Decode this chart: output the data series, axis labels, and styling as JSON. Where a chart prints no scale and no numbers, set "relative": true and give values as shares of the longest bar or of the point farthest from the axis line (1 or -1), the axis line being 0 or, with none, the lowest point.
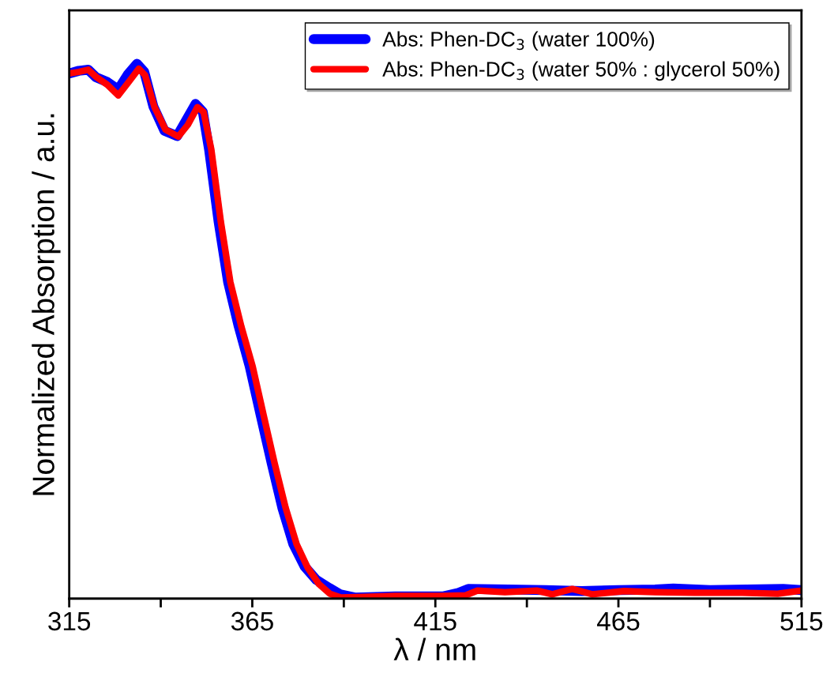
{
  "chart_data": {
    "type": "line",
    "relative": true,
    "xlabel": "λ / nm",
    "ylabel": "Normalized Absorption / a.u.",
    "xlim": [
      315,
      515
    ],
    "xticks": [
      315,
      {
        "value": 340,
        "label": null
      },
      365,
      {
        "value": 390,
        "label": null
      },
      415,
      {
        "value": 440,
        "label": null
      },
      465,
      {
        "value": 490,
        "label": null
      },
      515
    ],
    "legend": "top right",
    "grid": false,
    "marker": "none",
    "line_style": "solid",
    "series": [
      {
        "name": "Abs: Phen-DC$_{3}$ (water 100%)",
        "color": "#0000ff",
        "x": [
          315,
          317.6,
          320.2,
          322.3,
          325.4,
          328.4,
          331,
          333.5,
          335.5,
          338,
          341,
          344.5,
          347,
          349.5,
          351.5,
          353.2,
          355.8,
          358.4,
          361.3,
          364.3,
          367.3,
          370.3,
          373.2,
          376.2,
          379.3,
          382.5,
          386,
          389,
          393,
          404,
          417,
          421,
          424,
          435,
          445,
          455,
          465,
          475,
          480,
          490,
          500,
          510,
          515
        ],
        "values": [
          0.982,
          0.987,
          0.989,
          0.975,
          0.966,
          0.952,
          0.98,
          1.0,
          0.985,
          0.92,
          0.875,
          0.865,
          0.895,
          0.925,
          0.91,
          0.84,
          0.705,
          0.592,
          0.509,
          0.434,
          0.343,
          0.253,
          0.17,
          0.102,
          0.06,
          0.035,
          0.02,
          0.008,
          0.002,
          0.004,
          0.004,
          0.01,
          0.018,
          0.017,
          0.016,
          0.014,
          0.016,
          0.017,
          0.019,
          0.016,
          0.017,
          0.018,
          0.016
        ]
      },
      {
        "name": "Abs: Phen-DC$_{3}$ (water 50% : glycerol 50%)",
        "color": "#ff0000",
        "x": [
          315,
          317.6,
          320.2,
          322.3,
          325.4,
          328.4,
          331,
          334,
          335.7,
          338.3,
          341.3,
          344.8,
          347.4,
          350,
          351.7,
          353.8,
          356.4,
          359,
          362,
          365.1,
          368.1,
          371.1,
          374.1,
          377.1,
          380.2,
          383.2,
          386.2,
          389.2,
          395.3,
          403.9,
          416.8,
          423.3,
          426.5,
          434,
          442.7,
          447,
          452.4,
          457.8,
          466.5,
          475.1,
          485.9,
          498.8,
          508.5,
          515
        ],
        "values": [
          0.982,
          0.985,
          0.989,
          0.976,
          0.961,
          0.941,
          0.964,
          0.991,
          0.979,
          0.919,
          0.877,
          0.864,
          0.886,
          0.919,
          0.91,
          0.84,
          0.705,
          0.592,
          0.509,
          0.434,
          0.343,
          0.253,
          0.17,
          0.102,
          0.057,
          0.027,
          0.009,
          0.002,
          0.003,
          0.005,
          0.005,
          0.006,
          0.015,
          0.012,
          0.015,
          0.008,
          0.018,
          0.008,
          0.014,
          0.012,
          0.011,
          0.011,
          0.009,
          0.015
        ]
      }
    ]
  }
}
